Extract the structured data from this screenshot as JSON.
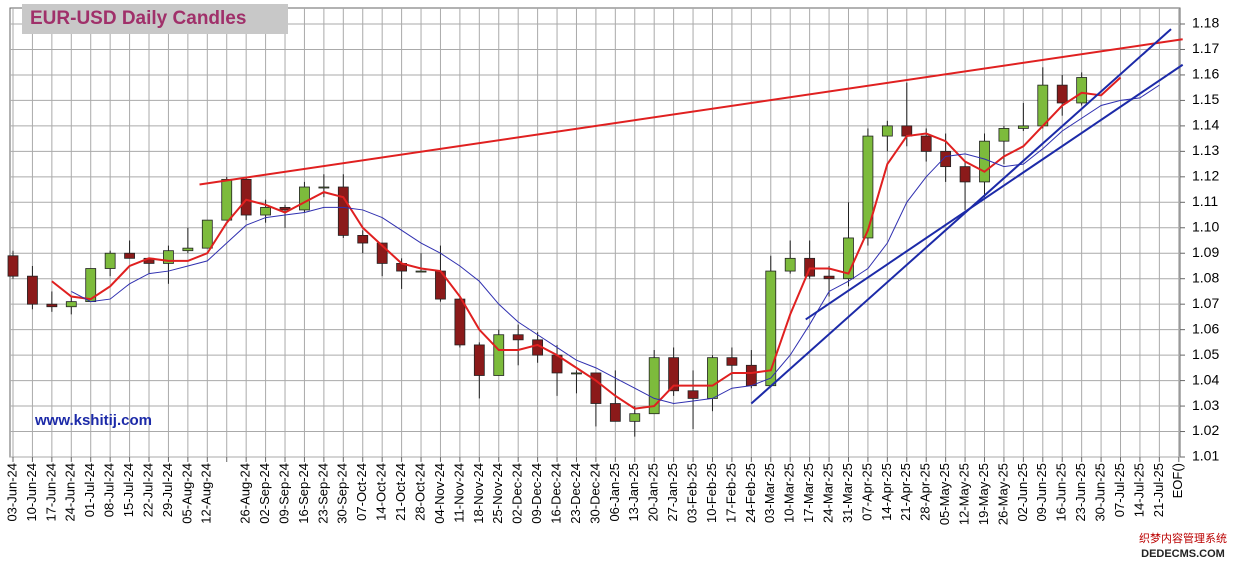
{
  "chart_data": {
    "type": "candlestick",
    "title": "EUR-USD Daily  Candles",
    "annotation": "www.kshitij.com",
    "watermark": [
      "织梦内容管理系统",
      "DEDECMS.COM"
    ],
    "categories": [
      "03-Jun-24",
      "10-Jun-24",
      "17-Jun-24",
      "24-Jun-24",
      "01-Jul-24",
      "08-Jul-24",
      "15-Jul-24",
      "22-Jul-24",
      "29-Jul-24",
      "05-Aug-24",
      "12-Aug-24",
      null,
      "26-Aug-24",
      "02-Sep-24",
      "09-Sep-24",
      "16-Sep-24",
      "23-Sep-24",
      "30-Sep-24",
      "07-Oct-24",
      "14-Oct-24",
      "21-Oct-24",
      "28-Oct-24",
      "04-Nov-24",
      "11-Nov-24",
      "18-Nov-24",
      "25-Nov-24",
      "02-Dec-24",
      "09-Dec-24",
      "16-Dec-24",
      "23-Dec-24",
      "30-Dec-24",
      "06-Jan-25",
      "13-Jan-25",
      "20-Jan-25",
      "27-Jan-25",
      "03-Feb-25",
      "10-Feb-25",
      "17-Feb-25",
      "24-Feb-25",
      "03-Mar-25",
      "10-Mar-25",
      "17-Mar-25",
      "24-Mar-25",
      "31-Mar-25",
      "07-Apr-25",
      "14-Apr-25",
      "21-Apr-25",
      "28-Apr-25",
      "05-May-25",
      "12-May-25",
      "19-May-25",
      "26-May-25",
      "02-Jun-25",
      "09-Jun-25",
      "16-Jun-25",
      "23-Jun-25",
      "30-Jun-25",
      "07-Jul-25",
      "14-Jul-25",
      "21-Jul-25",
      "EOF()"
    ],
    "open": [
      1.089,
      1.081,
      1.07,
      1.069,
      1.071,
      1.084,
      1.09,
      1.088,
      1.086,
      1.091,
      1.092,
      1.103,
      1.119,
      1.105,
      1.108,
      1.107,
      1.116,
      1.116,
      1.097,
      1.094,
      1.086,
      1.083,
      1.083,
      1.072,
      1.054,
      1.042,
      1.058,
      1.056,
      1.05,
      1.043,
      1.043,
      1.031,
      1.024,
      1.027,
      1.049,
      1.036,
      1.033,
      1.049,
      1.046,
      1.038,
      1.083,
      1.088,
      1.081,
      1.08,
      1.096,
      1.136,
      1.14,
      1.136,
      1.13,
      1.124,
      1.118,
      1.134,
      1.139,
      1.14,
      1.156,
      1.149,
      null,
      null,
      null,
      null,
      null
    ],
    "high": [
      1.091,
      1.085,
      1.075,
      1.073,
      1.084,
      1.091,
      1.095,
      1.088,
      1.093,
      1.1,
      1.103,
      1.12,
      1.12,
      1.111,
      1.109,
      1.118,
      1.121,
      1.121,
      1.099,
      1.094,
      1.088,
      1.09,
      1.093,
      1.073,
      1.055,
      1.06,
      1.062,
      1.059,
      1.054,
      1.044,
      1.043,
      1.044,
      1.03,
      1.052,
      1.053,
      1.044,
      1.05,
      1.053,
      1.052,
      1.089,
      1.095,
      1.095,
      1.085,
      1.11,
      1.139,
      1.142,
      1.157,
      1.139,
      1.137,
      1.126,
      1.137,
      1.14,
      1.149,
      1.163,
      1.16,
      1.161,
      null,
      null,
      null,
      null,
      null
    ],
    "low": [
      1.08,
      1.068,
      1.067,
      1.066,
      1.071,
      1.081,
      1.088,
      1.082,
      1.078,
      1.09,
      1.092,
      1.103,
      1.103,
      1.102,
      1.1,
      1.106,
      1.112,
      1.096,
      1.09,
      1.081,
      1.076,
      1.083,
      1.071,
      1.053,
      1.033,
      1.042,
      1.046,
      1.047,
      1.034,
      1.035,
      1.022,
      1.024,
      1.018,
      1.027,
      1.034,
      1.021,
      1.028,
      1.04,
      1.037,
      1.038,
      1.082,
      1.08,
      1.073,
      1.077,
      1.093,
      1.13,
      1.132,
      1.126,
      1.118,
      1.107,
      1.112,
      1.125,
      1.138,
      1.139,
      1.144,
      1.148,
      null,
      null,
      null,
      null,
      null
    ],
    "close": [
      1.081,
      1.07,
      1.069,
      1.071,
      1.084,
      1.09,
      1.088,
      1.086,
      1.091,
      1.092,
      1.103,
      1.119,
      1.105,
      1.108,
      1.107,
      1.116,
      1.116,
      1.097,
      1.094,
      1.086,
      1.083,
      1.083,
      1.072,
      1.054,
      1.042,
      1.058,
      1.056,
      1.05,
      1.043,
      1.043,
      1.031,
      1.024,
      1.027,
      1.049,
      1.036,
      1.033,
      1.049,
      1.046,
      1.038,
      1.083,
      1.088,
      1.081,
      1.08,
      1.096,
      1.136,
      1.14,
      1.136,
      1.13,
      1.124,
      1.118,
      1.134,
      1.139,
      1.14,
      1.156,
      1.149,
      1.159,
      null,
      null,
      null,
      null,
      null
    ],
    "up_color": "#7dbb3c",
    "down_color": "#8b1a1a",
    "moving_averages": [
      {
        "color": "#e02020",
        "values": [
          null,
          null,
          1.079,
          1.073,
          1.072,
          1.077,
          1.085,
          1.088,
          1.087,
          1.087,
          1.09,
          1.102,
          1.111,
          1.109,
          1.106,
          1.11,
          1.114,
          1.112,
          1.1,
          1.093,
          1.086,
          1.084,
          1.083,
          1.073,
          1.06,
          1.052,
          1.052,
          1.054,
          1.05,
          1.045,
          1.04,
          1.034,
          1.029,
          1.03,
          1.038,
          1.038,
          1.038,
          1.043,
          1.043,
          1.044,
          1.066,
          1.084,
          1.084,
          1.082,
          1.099,
          1.125,
          1.136,
          1.137,
          1.134,
          1.126,
          1.122,
          1.128,
          1.132,
          1.14,
          1.148,
          1.153,
          1.152,
          1.159,
          null,
          null,
          null
        ]
      },
      {
        "color": "#3030b0",
        "values": [
          null,
          null,
          null,
          1.075,
          1.071,
          1.072,
          1.078,
          1.082,
          1.083,
          1.085,
          1.087,
          1.094,
          1.101,
          1.104,
          1.105,
          1.106,
          1.108,
          1.108,
          1.107,
          1.104,
          1.099,
          1.094,
          1.09,
          1.085,
          1.079,
          1.07,
          1.063,
          1.058,
          1.053,
          1.048,
          1.045,
          1.041,
          1.037,
          1.033,
          1.031,
          1.032,
          1.033,
          1.037,
          1.038,
          1.041,
          1.05,
          1.062,
          1.075,
          1.079,
          1.084,
          1.094,
          1.11,
          1.12,
          1.128,
          1.129,
          1.127,
          1.124,
          1.125,
          1.131,
          1.138,
          1.143,
          1.148,
          1.15,
          1.151,
          1.156,
          null
        ]
      }
    ],
    "trend_lines": [
      {
        "color": "#e02020",
        "x": [
          9.6,
          60.2
        ],
        "y": [
          1.117,
          1.174
        ]
      },
      {
        "color": "#1c2aa8",
        "x": [
          38.0,
          59.6
        ],
        "y": [
          1.031,
          1.178
        ]
      },
      {
        "color": "#1c2aa8",
        "x": [
          40.8,
          60.2
        ],
        "y": [
          1.064,
          1.164
        ]
      }
    ],
    "ylim": [
      1.01,
      1.18
    ],
    "yticks": [
      1.01,
      1.02,
      1.03,
      1.04,
      1.05,
      1.06,
      1.07,
      1.08,
      1.09,
      {
        "value": 1.1,
        "label": "1.10"
      },
      1.11,
      1.12,
      1.13,
      1.14,
      1.15,
      1.16,
      1.17,
      1.18
    ],
    "grid": true
  }
}
